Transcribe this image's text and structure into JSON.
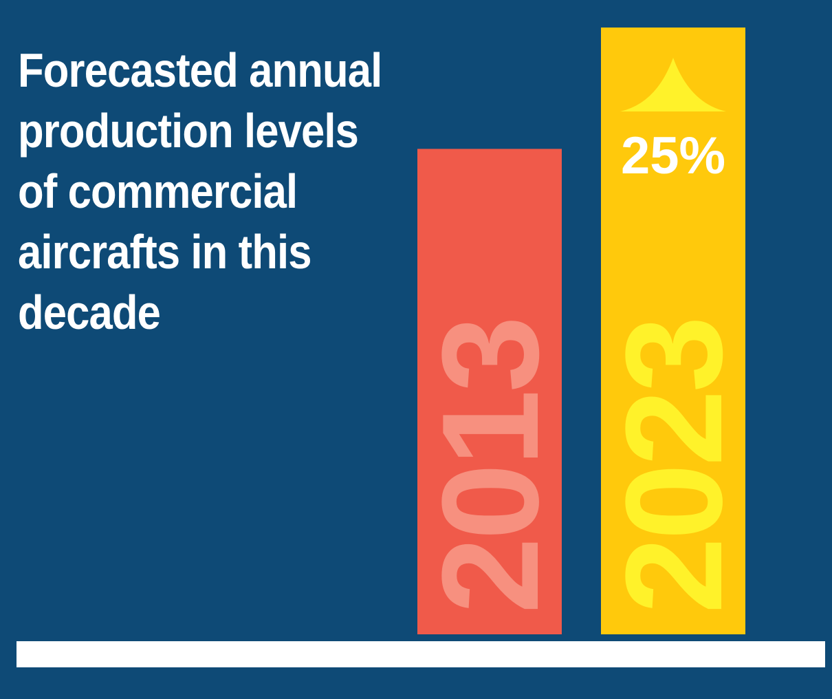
{
  "chart_data": {
    "type": "bar",
    "title": "Forecasted annual\nproduction  levels\nof commercial\naircrafts in this\ndecade",
    "categories": [
      "2013",
      "2023"
    ],
    "values": [
      100,
      125
    ],
    "change_label": "25%",
    "ylim": [
      0,
      125
    ],
    "xlabel": "",
    "ylabel": "",
    "grid": false,
    "legend": "none",
    "colors": {
      "background": "#0e4a76",
      "baseline": "#ffffff",
      "bars": [
        "#f05a4a",
        "#ffc90c"
      ],
      "year_labels": [
        "#f7907f",
        "#fff22a"
      ],
      "arrow": "#fff22a",
      "change_label": "#ffffff"
    }
  }
}
